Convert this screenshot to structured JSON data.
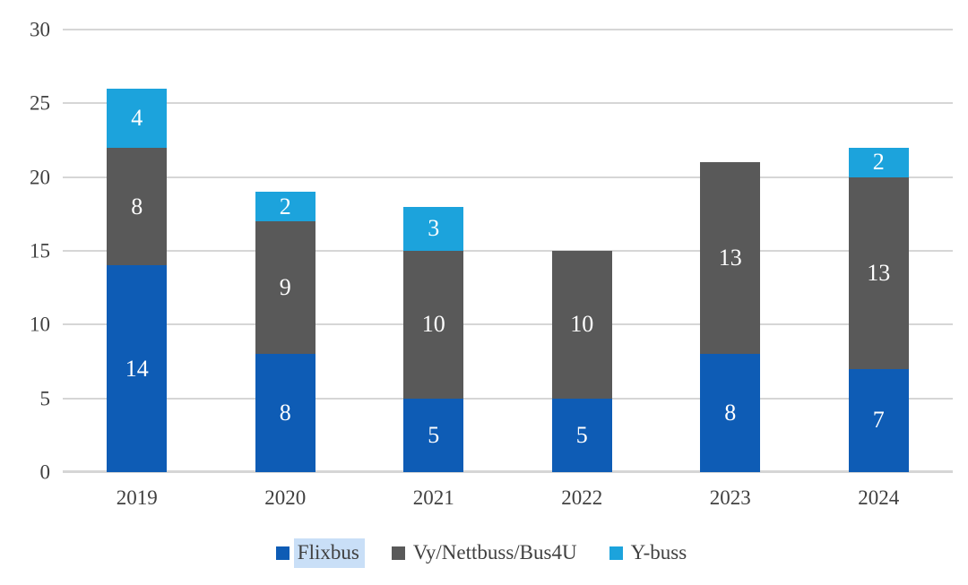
{
  "chart_data": {
    "type": "bar",
    "stacked": true,
    "title": "",
    "xlabel": "",
    "ylabel": "",
    "categories": [
      "2019",
      "2020",
      "2021",
      "2022",
      "2023",
      "2024"
    ],
    "series": [
      {
        "name": "Flixbus",
        "color": "#0e5cb5",
        "values": [
          14,
          8,
          5,
          5,
          8,
          7
        ]
      },
      {
        "name": "Vy/Nettbuss/Bus4U",
        "color": "#595959",
        "values": [
          8,
          9,
          10,
          10,
          13,
          13
        ]
      },
      {
        "name": "Y-buss",
        "color": "#1ca3dc",
        "values": [
          4,
          2,
          3,
          0,
          0,
          2
        ]
      }
    ],
    "totals": [
      26,
      19,
      18,
      15,
      21,
      22
    ],
    "ylim": [
      0,
      30
    ],
    "ytick_interval": 5,
    "ytick_labels": [
      "0",
      "5",
      "10",
      "15",
      "20",
      "25",
      "30"
    ],
    "grid": true,
    "gridline_color": "#d6d6d6",
    "axis_text_color": "#404040",
    "data_labels": true,
    "data_label_color": "#ffffff",
    "legend_position": "bottom",
    "legend": {
      "items": [
        "Flixbus",
        "Vy/Nettbuss/Bus4U",
        "Y-buss"
      ],
      "highlighted_item": "Flixbus",
      "highlight_color": "#c9dff7"
    }
  }
}
